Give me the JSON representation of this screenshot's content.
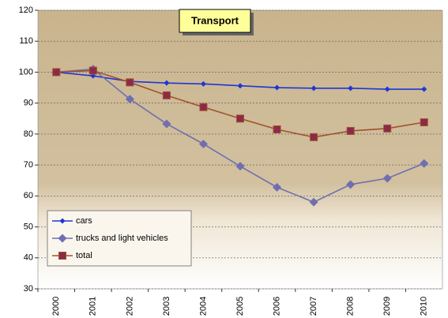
{
  "chart_data": {
    "type": "line",
    "title": "Transport",
    "categories": [
      "2000",
      "2001",
      "2002",
      "2003",
      "2004",
      "2005",
      "2006",
      "2007",
      "2008",
      "2009",
      "2010"
    ],
    "series": [
      {
        "name": "cars",
        "color": "#1f35d6",
        "marker": "diamond",
        "values": [
          100,
          98.8,
          97,
          96.5,
          96.2,
          95.6,
          95,
          94.8,
          94.8,
          94.5,
          94.5
        ]
      },
      {
        "name": "trucks and light vehicles",
        "color": "#6f6fb0",
        "marker": "diamond-large",
        "values": [
          100,
          101,
          91.3,
          83.3,
          76.8,
          69.6,
          62.8,
          58,
          63.7,
          65.7,
          70.5
        ]
      },
      {
        "name": "total",
        "color": "#a0522d",
        "marker": "square",
        "values": [
          100,
          100.5,
          96.7,
          92.5,
          88.7,
          85,
          81.5,
          79,
          81,
          81.8,
          83.8
        ]
      }
    ],
    "ylim": [
      30,
      120
    ],
    "yticks": [
      30,
      40,
      50,
      60,
      70,
      80,
      90,
      100,
      110,
      120
    ],
    "grid": true,
    "legend": "lower-left"
  }
}
